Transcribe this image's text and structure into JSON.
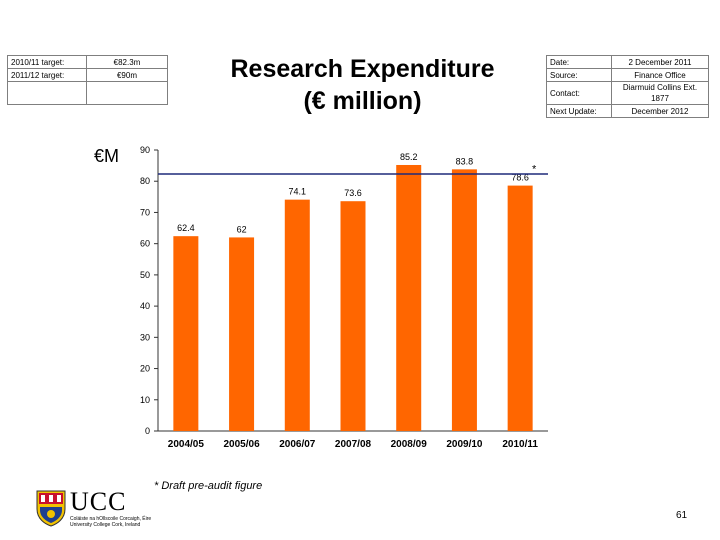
{
  "targets": {
    "rows": [
      {
        "label": "2010/11 target:",
        "value": "€82.3m"
      },
      {
        "label": "2011/12 target:",
        "value": "€90m"
      }
    ]
  },
  "title_line1": "Research Expenditure",
  "title_line2": "(€ million)",
  "unit_label": "€M",
  "meta": {
    "date_label": "Date:",
    "date_value": "2 December 2011",
    "source_label": "Source:",
    "source_value": "Finance Office",
    "contact_label": "Contact:",
    "contact_value": "Diarmuid Collins Ext. 1877",
    "next_update_label": "Next Update:",
    "next_update_value": "December 2012"
  },
  "chart_data": {
    "type": "bar",
    "categories": [
      "2004/05",
      "2005/06",
      "2006/07",
      "2007/08",
      "2008/09",
      "2009/10",
      "2010/11"
    ],
    "values": [
      62.4,
      62,
      74.1,
      73.6,
      85.2,
      83.8,
      78.6
    ],
    "value_labels": [
      "62.4",
      "62",
      "74.1",
      "73.6",
      "85.2",
      "83.8",
      "78.6"
    ],
    "value_marks": [
      "",
      "",
      "",
      "",
      "",
      "",
      "*"
    ],
    "reference_line": 82.3,
    "title": "",
    "xlabel": "",
    "ylabel": "€M",
    "ylim": [
      0,
      90
    ],
    "yticks": [
      0,
      10,
      20,
      30,
      40,
      50,
      60,
      70,
      80,
      90
    ],
    "grid": false,
    "bar_color": "#ff6600",
    "reference_line_color": "#1f2a7a"
  },
  "footnote": "* Draft pre-audit figure",
  "logo": {
    "name": "UCC",
    "subtitle_line1": "Coláiste na hOllscoile Corcaigh, Éire",
    "subtitle_line2": "University College Cork, Ireland"
  },
  "page_number": "61"
}
